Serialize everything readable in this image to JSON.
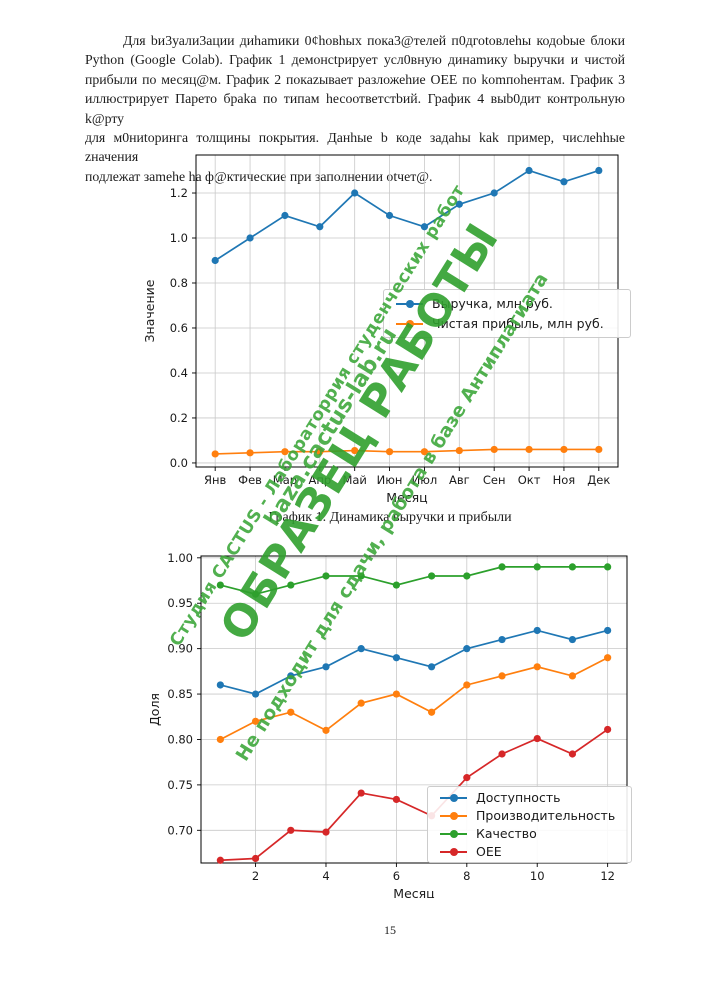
{
  "page": {
    "number": "15"
  },
  "paragraph": {
    "lines": [
      "Для bи3уали3ации диhamики 0¢hoвhых пока3@телей п0дгоtoвлеhы кодоbые блоки",
      "Python (Google Colab). График 1 демонсtрирует усл0вную динаmику bыручки и чистой",
      "прибыли по месяц@м. График 2 покаzывает разложеhие OEE по komпоhентам. График 3",
      "иллюстрирует Парето браkа по типам hесоответстbий. График 4 выb0дит контрольную k@рту",
      "для м0ниtоринга толщины покрытия. Данhые b коде задаhы kak пример, числеhhые zначения",
      "подлежат зamehe ha ф@ктические при заполнении оtчет@."
    ]
  },
  "figure1": {
    "caption": "График 1. Динамика выручки и прибыли"
  },
  "watermark": {
    "line1": "Студия CACTUS - Лабораторрия студенческих работ",
    "line2": "baza.cactus-lab.ru",
    "big": "ОБРАЗЕЦ РАБОТЫ",
    "line3": "Не подходит для сдачи, работа в базе Антиплагиата",
    "color": "#3aa637"
  },
  "chart_data": [
    {
      "type": "line",
      "title": "",
      "xlabel": "Месяц",
      "ylabel": "Значение",
      "categories": [
        "Янв",
        "Фев",
        "Мар",
        "Апр",
        "Май",
        "Июн",
        "Июл",
        "Авг",
        "Сен",
        "Окт",
        "Ноя",
        "Дек"
      ],
      "xlim": [
        -0.55,
        11.55
      ],
      "ylim": [
        -0.018,
        1.369
      ],
      "ytick_values": [
        0.0,
        0.2,
        0.4,
        0.6,
        0.8,
        1.0,
        1.2
      ],
      "ytick_labels": [
        "0.0",
        "0.2",
        "0.4",
        "0.6",
        "0.8",
        "1.0",
        "1.2"
      ],
      "grid": true,
      "legend_position": "center right",
      "series": [
        {
          "name": "Выручка, млн руб.",
          "color": "#1f77b4",
          "values": [
            0.9,
            1.0,
            1.1,
            1.05,
            1.2,
            1.1,
            1.05,
            1.15,
            1.2,
            1.3,
            1.25,
            1.3
          ]
        },
        {
          "name": "Чистая прибыль, млн руб.",
          "color": "#ff7f0e",
          "values": [
            0.04,
            0.045,
            0.05,
            0.05,
            0.055,
            0.05,
            0.05,
            0.055,
            0.06,
            0.06,
            0.06,
            0.06
          ]
        }
      ]
    },
    {
      "type": "line",
      "title": "",
      "xlabel": "Месяц",
      "ylabel": "Доля",
      "x": [
        1,
        2,
        3,
        4,
        5,
        6,
        7,
        8,
        9,
        10,
        11,
        12
      ],
      "xlim": [
        0.45,
        12.55
      ],
      "ylim": [
        0.664,
        1.002
      ],
      "xtick_values": [
        2,
        4,
        6,
        8,
        10,
        12
      ],
      "xtick_labels": [
        "2",
        "4",
        "6",
        "8",
        "10",
        "12"
      ],
      "ytick_values": [
        0.7,
        0.75,
        0.8,
        0.85,
        0.9,
        0.95,
        1.0
      ],
      "ytick_labels": [
        "0.70",
        "0.75",
        "0.80",
        "0.85",
        "0.90",
        "0.95",
        "1.00"
      ],
      "grid": true,
      "legend_position": "lower right",
      "series": [
        {
          "name": "Доступность",
          "color": "#1f77b4",
          "values": [
            0.86,
            0.85,
            0.87,
            0.88,
            0.9,
            0.89,
            0.88,
            0.9,
            0.91,
            0.92,
            0.91,
            0.92
          ]
        },
        {
          "name": "Производительность",
          "color": "#ff7f0e",
          "values": [
            0.8,
            0.82,
            0.83,
            0.81,
            0.84,
            0.85,
            0.83,
            0.86,
            0.87,
            0.88,
            0.87,
            0.89
          ]
        },
        {
          "name": "Качество",
          "color": "#2ca02c",
          "values": [
            0.97,
            0.96,
            0.97,
            0.98,
            0.98,
            0.97,
            0.98,
            0.98,
            0.99,
            0.99,
            0.99,
            0.99
          ]
        },
        {
          "name": "OEE",
          "color": "#d62728",
          "values": [
            0.667,
            0.669,
            0.7,
            0.698,
            0.741,
            0.734,
            0.716,
            0.758,
            0.784,
            0.801,
            0.784,
            0.811
          ]
        }
      ]
    }
  ]
}
